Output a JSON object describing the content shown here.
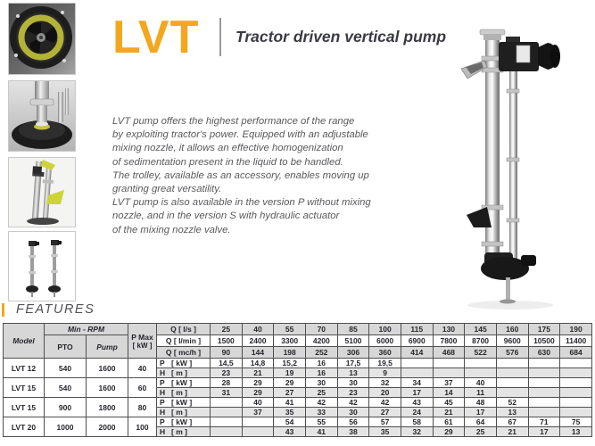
{
  "header": {
    "logo": "LVT",
    "subtitle": "Tractor driven vertical pump"
  },
  "description": {
    "text": "LVT pump offers the highest performance of the range\nby exploiting tractor's power. Equipped with an adjustable\nmixing nozzle, it allows an effective homogenization\nof sedimentation present in the liquid to be handled.\nThe trolley, available as an accessory, enables moving up\ngranting great versatility.\nLVT pump is also available in the version P without mixing\nnozzle, and in the version S with hydraulic actuator\nof the mixing nozzle valve."
  },
  "features": {
    "label": "FEATURES"
  },
  "colors": {
    "accent": "#F2A71E",
    "table_header_gray": "#d7d7d7",
    "table_shade_gray": "#e4e4e4"
  },
  "table": {
    "p_letter": "P",
    "p_unit": "[ kW ]",
    "h_letter": "H",
    "h_unit": "[ m ]",
    "header": {
      "model": "Model",
      "min_rpm": "Min - RPM",
      "pto": "PTO",
      "pump": "Pump",
      "pmax_line1": "P Max",
      "pmax_line2": "[ kW ]",
      "q_ls_label": "Q [ l/s ]",
      "q_lmin_label": "Q [ l/min ]",
      "q_mch_label": "Q [ mc/h ]",
      "q_ls": [
        "25",
        "40",
        "55",
        "70",
        "85",
        "100",
        "115",
        "130",
        "145",
        "160",
        "175",
        "190"
      ],
      "q_lmin": [
        "1500",
        "2400",
        "3300",
        "4200",
        "5100",
        "6000",
        "6900",
        "7800",
        "8700",
        "9600",
        "10500",
        "11400"
      ],
      "q_mch": [
        "90",
        "144",
        "198",
        "252",
        "306",
        "360",
        "414",
        "468",
        "522",
        "576",
        "630",
        "684"
      ]
    },
    "rows": [
      {
        "model": "LVT 12",
        "pto": "540",
        "pump": "1600",
        "pmax": "40",
        "p": [
          "14,5",
          "14,8",
          "15,2",
          "16",
          "17,5",
          "19,5",
          "",
          "",
          "",
          "",
          "",
          ""
        ],
        "h": [
          "23",
          "21",
          "19",
          "16",
          "13",
          "9",
          "",
          "",
          "",
          "",
          "",
          ""
        ]
      },
      {
        "model": "LVT 15",
        "pto": "540",
        "pump": "1600",
        "pmax": "60",
        "p": [
          "28",
          "29",
          "29",
          "30",
          "30",
          "32",
          "34",
          "37",
          "40",
          "",
          "",
          ""
        ],
        "h": [
          "31",
          "29",
          "27",
          "25",
          "23",
          "20",
          "17",
          "14",
          "11",
          "",
          "",
          ""
        ]
      },
      {
        "model": "LVT 15",
        "pto": "900",
        "pump": "1800",
        "pmax": "80",
        "p": [
          "",
          "40",
          "41",
          "42",
          "42",
          "42",
          "43",
          "45",
          "48",
          "52",
          "",
          ""
        ],
        "h": [
          "",
          "37",
          "35",
          "33",
          "30",
          "27",
          "24",
          "21",
          "17",
          "13",
          "",
          ""
        ]
      },
      {
        "model": "LVT 20",
        "pto": "1000",
        "pump": "2000",
        "pmax": "100",
        "p": [
          "",
          "",
          "54",
          "55",
          "56",
          "57",
          "58",
          "61",
          "64",
          "67",
          "71",
          "75"
        ],
        "h": [
          "",
          "",
          "43",
          "41",
          "38",
          "35",
          "32",
          "29",
          "25",
          "21",
          "17",
          "13"
        ]
      }
    ]
  }
}
